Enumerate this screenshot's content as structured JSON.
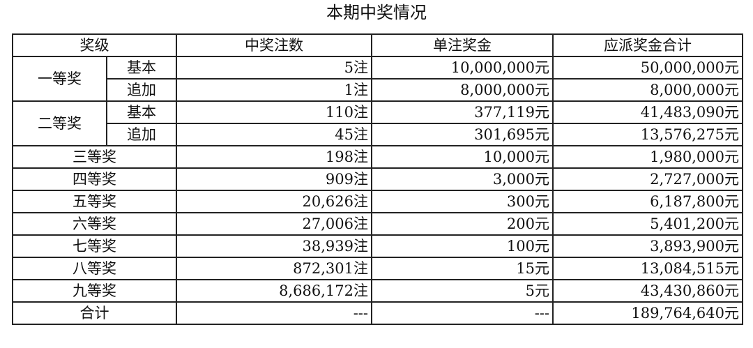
{
  "title": "本期中奖情况",
  "headers": [
    "奖级",
    "中奖注数",
    "单注奖金",
    "应派奖金合计"
  ],
  "rows": [
    {
      "level": "一等奖",
      "sub": "基本",
      "count": "5注",
      "prize": "10,000,000元",
      "total": "50,000,000元"
    },
    {
      "level": "一等奖",
      "sub": "追加",
      "count": "1注",
      "prize": "8,000,000元",
      "total": "8,000,000元"
    },
    {
      "level": "二等奖",
      "sub": "基本",
      "count": "110注",
      "prize": "377,119元",
      "total": "41,483,090元"
    },
    {
      "level": "二等奖",
      "sub": "追加",
      "count": "45注",
      "prize": "301,695元",
      "total": "13,576,275元"
    },
    {
      "level": "三等奖",
      "count": "198注",
      "prize": "10,000元",
      "total": "1,980,000元"
    },
    {
      "level": "四等奖",
      "count": "909注",
      "prize": "3,000元",
      "total": "2,727,000元"
    },
    {
      "level": "五等奖",
      "count": "20,626注",
      "prize": "300元",
      "total": "6,187,800元"
    },
    {
      "level": "六等奖",
      "count": "27,006注",
      "prize": "200元",
      "total": "5,401,200元"
    },
    {
      "level": "七等奖",
      "count": "38,939注",
      "prize": "100元",
      "total": "3,893,900元"
    },
    {
      "level": "八等奖",
      "count": "872,301注",
      "prize": "15元",
      "total": "13,084,515元"
    },
    {
      "level": "九等奖",
      "count": "8,686,172注",
      "prize": "5元",
      "total": "43,430,860元"
    },
    {
      "level": "合计",
      "count": "---",
      "prize": "---",
      "total": "189,764,640元"
    }
  ]
}
